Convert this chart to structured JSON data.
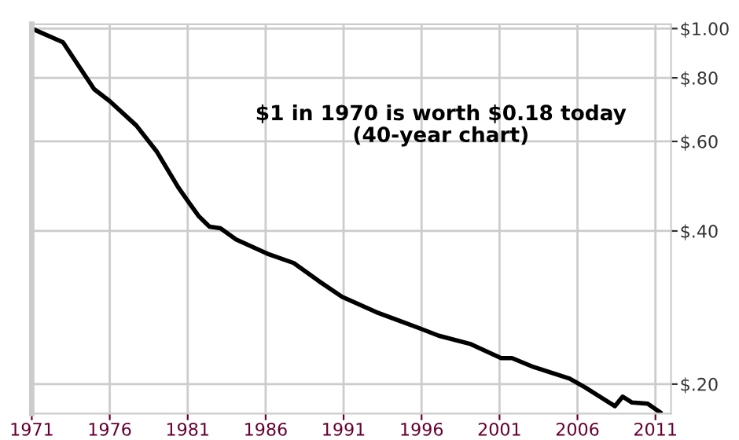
{
  "chart_data": {
    "type": "line",
    "annotations": [
      "$1 in 1970 is worth $0.18 today\n(40-year chart)"
    ],
    "series": [
      {
        "color": "#000000",
        "x": [
          1971.0,
          1973.0,
          1975.0,
          1976.0,
          1977.7,
          1979.0,
          1980.4,
          1981.1,
          1981.7,
          1982.4,
          1983.1,
          1984.1,
          1986.1,
          1987.8,
          1989.4,
          1990.9,
          1993.1,
          1995.8,
          1997.1,
          1999.1,
          2001.1,
          2001.8,
          2003.2,
          2005.5,
          2006.5,
          2008.4,
          2008.9,
          2009.5,
          2010.5,
          2011.3
        ],
        "values": [
          1.0,
          0.94,
          0.76,
          0.72,
          0.645,
          0.574,
          0.487,
          0.454,
          0.428,
          0.408,
          0.405,
          0.385,
          0.361,
          0.346,
          0.319,
          0.297,
          0.277,
          0.258,
          0.249,
          0.24,
          0.225,
          0.225,
          0.216,
          0.205,
          0.197,
          0.181,
          0.189,
          0.184,
          0.183,
          0.176
        ]
      }
    ],
    "log": "y",
    "xlim": [
      1971,
      2012
    ],
    "ylim": [
      0.175,
      1.02
    ],
    "xticks": [
      1971,
      1976,
      1981,
      1986,
      1991,
      1996,
      2001,
      2006,
      2011
    ],
    "yticks": [
      {
        "value": 0.2,
        "label": "$.20"
      },
      {
        "value": 0.4,
        "label": "$.40"
      },
      {
        "value": 0.6,
        "label": "$.60"
      },
      {
        "value": 0.8,
        "label": "$.80"
      },
      {
        "value": 1.0,
        "label": "$1.00"
      }
    ],
    "grid": true,
    "marker": "none",
    "line_style": "solid"
  }
}
